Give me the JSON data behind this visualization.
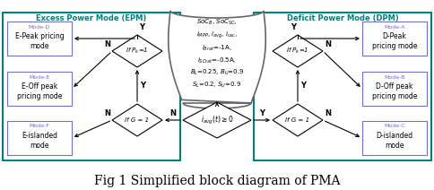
{
  "title": "Fig 1 Simplified block diagram of PMA",
  "title_fontsize": 10,
  "background_color": "#ffffff",
  "epm_title": "Excess Power Mode (EPM)",
  "dpm_title": "Deficit Power Mode (DPM)",
  "epm_box_color": "#008080",
  "dpm_box_color": "#008080",
  "mode_box_border": "#7070cc",
  "center_poly_color": "#888888",
  "mode_label_color": "#7070cc",
  "arrow_color": "#000000",
  "mode_d_lines": [
    "Mode-D",
    "E-Peak pricing",
    "mode"
  ],
  "mode_e_lines": [
    "Mode-E",
    "E-Off peak",
    "pricing mode"
  ],
  "mode_f_lines": [
    "Mode-F",
    "E-islanded",
    "mode"
  ],
  "mode_a_lines": [
    "Mode-A",
    "D-Peak",
    "pricing mode"
  ],
  "mode_b_lines": [
    "Mode-B",
    "D-Off peak",
    "pricing mode"
  ],
  "mode_c_lines": [
    "Mode-C",
    "D-islanded",
    "mode"
  ],
  "center_line1": "SoC$_B$, SoC$_{SC}$,",
  "center_line2": "$i_{MPP}$, $i_{avg}$, $i_{usc}$,",
  "center_line3": "$i_{Brat}$=-1A,",
  "center_line4": "$i_{SCrat}$=-0.5A,",
  "center_line5": "$B_L$=0.25, $B_U$=0.9",
  "center_line6": "$S_L$=0.2, $S_U$=0.9",
  "d1_label": "If $P_k$=1",
  "d2_label": "If G = 1",
  "d3_label": "$i_{avg}(t) \\geq 0$",
  "d4_label": "If $P_k$=1",
  "d5_label": "If G = 1"
}
